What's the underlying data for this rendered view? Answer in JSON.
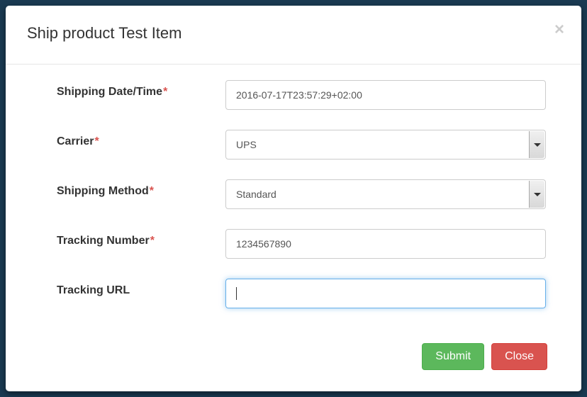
{
  "modal": {
    "title": "Ship product Test Item",
    "close_symbol": "×"
  },
  "form": {
    "fields": {
      "shipping_date": {
        "label": "Shipping Date/Time",
        "required": true,
        "value": "2016-07-17T23:57:29+02:00"
      },
      "carrier": {
        "label": "Carrier",
        "required": true,
        "value": "UPS"
      },
      "shipping_method": {
        "label": "Shipping Method",
        "required": true,
        "value": "Standard"
      },
      "tracking_number": {
        "label": "Tracking Number",
        "required": true,
        "value": "1234567890"
      },
      "tracking_url": {
        "label": "Tracking URL",
        "required": false,
        "value": ""
      }
    }
  },
  "buttons": {
    "submit": "Submit",
    "close": "Close"
  },
  "styles": {
    "required_color": "#d9534f",
    "submit_bg": "#5cb85c",
    "close_bg": "#d9534f",
    "focus_border": "#66afe9",
    "input_border": "#cccccc",
    "text_color": "#333333"
  }
}
